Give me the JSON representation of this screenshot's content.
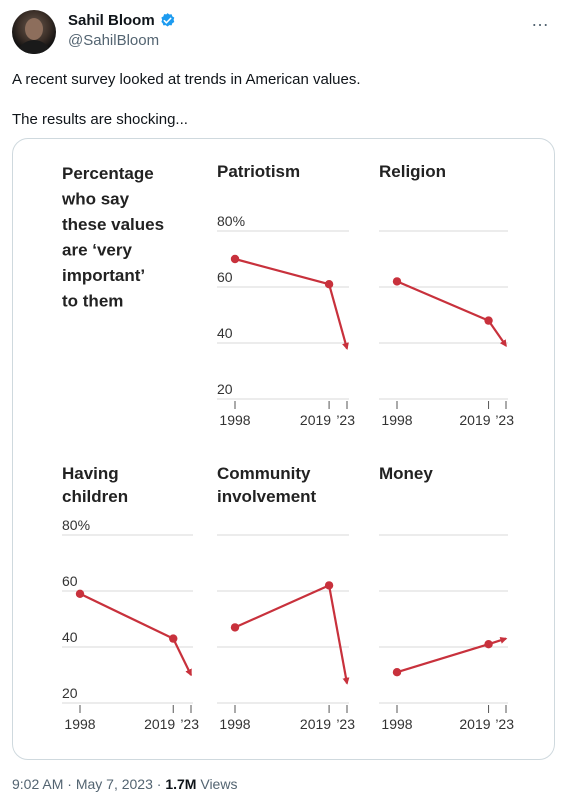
{
  "author": {
    "name": "Sahil Bloom",
    "handle": "@SahilBloom",
    "verified_color": "#1d9bf0"
  },
  "more_icon": "…",
  "tweet": {
    "line1": "A recent survey looked at trends in American values.",
    "line2": "The results are shocking..."
  },
  "meta": {
    "time": "9:02 AM",
    "date": "May 7, 2023",
    "separator": "·",
    "views_count": "1.7M",
    "views_label": "Views"
  },
  "chart_data": {
    "type": "line",
    "intro_text": [
      "Percentage",
      "who say",
      "these values",
      "are ‘very",
      "important’",
      "to them"
    ],
    "y_ticks": [
      80,
      60,
      40,
      20
    ],
    "y_tick_labels": [
      "80%",
      "60",
      "40",
      "20"
    ],
    "ylim": [
      20,
      80
    ],
    "x_tick_labels": [
      "1998",
      "2019",
      "’23"
    ],
    "line_color": "#c8313c",
    "grid": true,
    "panels": [
      {
        "title": [
          "Patriotism"
        ],
        "x": [
          1998,
          2019,
          2023
        ],
        "values": [
          70,
          61,
          38
        ],
        "show_axis_labels": true
      },
      {
        "title": [
          "Religion"
        ],
        "x": [
          1998,
          2019,
          2023
        ],
        "values": [
          62,
          48,
          39
        ],
        "show_axis_labels": false
      },
      {
        "title": [
          "Having",
          "children"
        ],
        "x": [
          1998,
          2019,
          2023
        ],
        "values": [
          59,
          43,
          30
        ],
        "show_axis_labels": true
      },
      {
        "title": [
          "Community",
          "involvement"
        ],
        "x": [
          1998,
          2019,
          2023
        ],
        "values": [
          47,
          62,
          27
        ],
        "show_axis_labels": false
      },
      {
        "title": [
          "Money"
        ],
        "x": [
          1998,
          2019,
          2023
        ],
        "values": [
          31,
          41,
          43
        ],
        "show_axis_labels": false
      }
    ]
  }
}
